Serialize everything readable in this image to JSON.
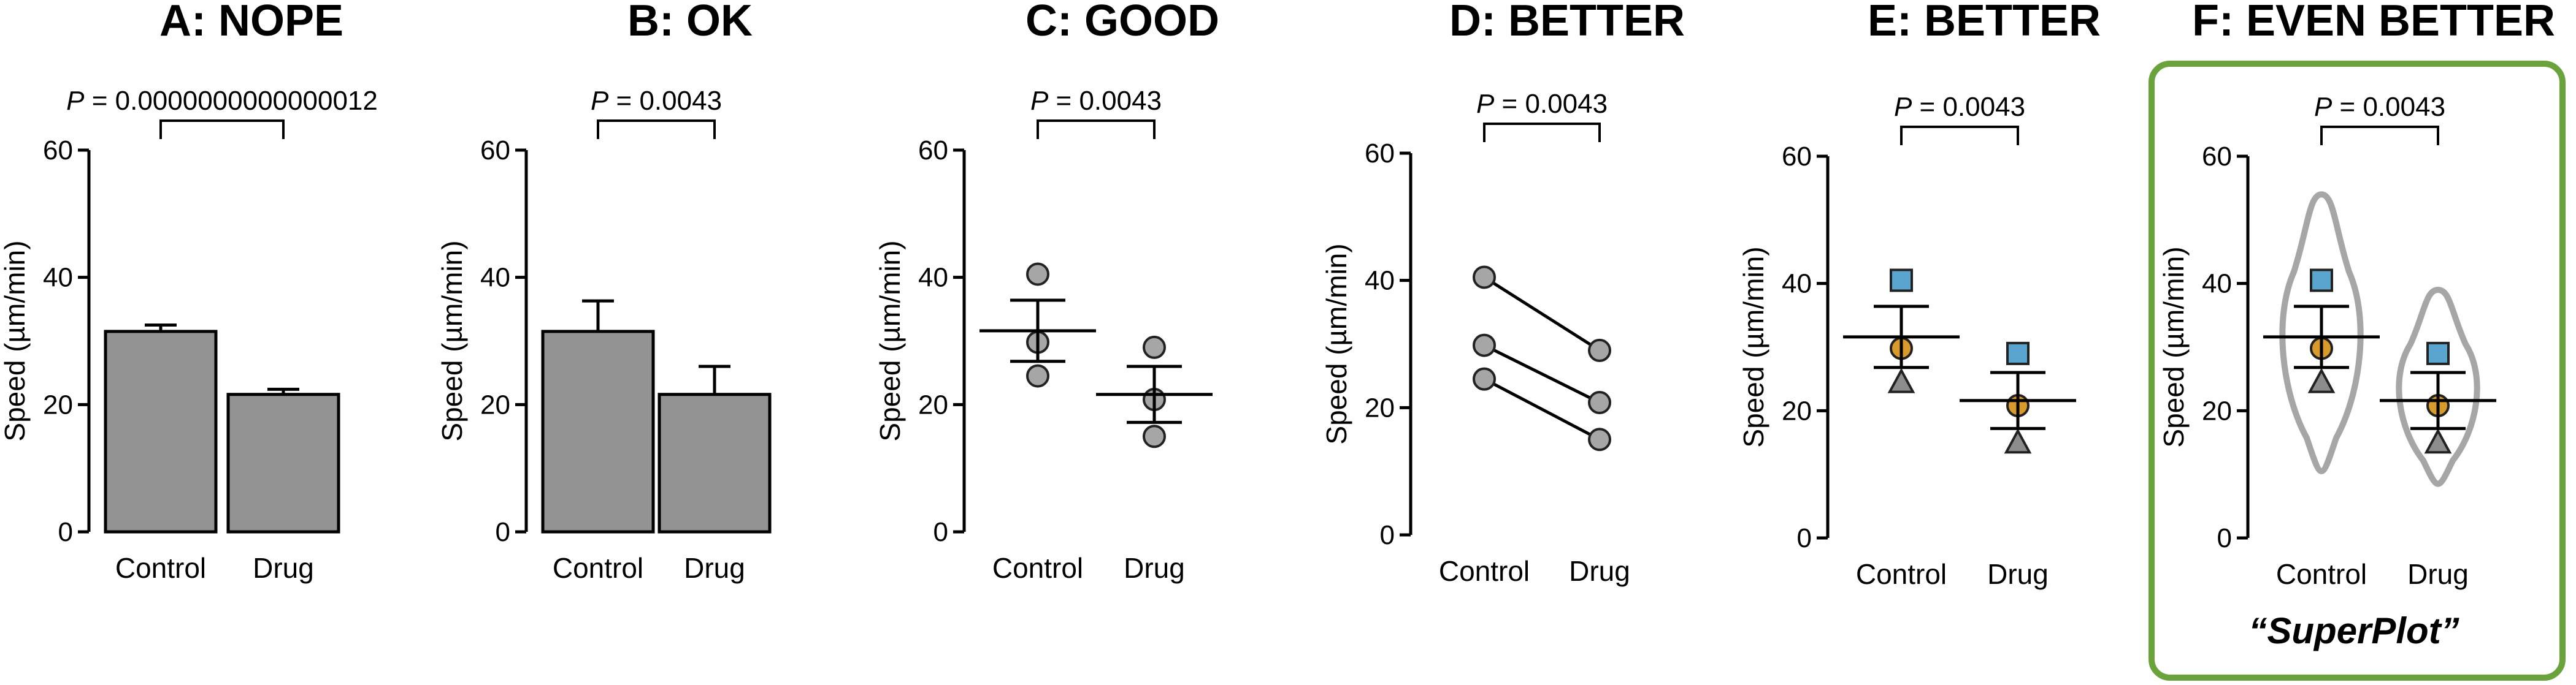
{
  "figure": {
    "superplot_label": "“SuperPlot”",
    "highlight_color": "#6aa23c"
  },
  "chart_data": [
    {
      "panel": "A",
      "type": "bar",
      "title": "A: NOPE",
      "ylabel": "Speed (µm/min)",
      "categories": [
        "Control",
        "Drug"
      ],
      "ylim": [
        0,
        60
      ],
      "yticks": [
        0,
        20,
        40,
        60
      ],
      "means": [
        31.5,
        21.6
      ],
      "errors": [
        1.0,
        0.8
      ],
      "p_label": "P",
      "p_value": "= 0.0000000000000012"
    },
    {
      "panel": "B",
      "type": "bar",
      "title": "B: OK",
      "ylabel": "Speed (µm/min)",
      "categories": [
        "Control",
        "Drug"
      ],
      "ylim": [
        0,
        60
      ],
      "yticks": [
        0,
        20,
        40,
        60
      ],
      "means": [
        31.5,
        21.6
      ],
      "errors": [
        4.8,
        4.4
      ],
      "p_label": "P",
      "p_value": "= 0.0043"
    },
    {
      "panel": "C",
      "type": "scatter",
      "title": "C: GOOD",
      "ylabel": "Speed (µm/min)",
      "categories": [
        "Control",
        "Drug"
      ],
      "ylim": [
        0,
        60
      ],
      "yticks": [
        0,
        20,
        40,
        60
      ],
      "points": [
        [
          40.5,
          29.8,
          24.5
        ],
        [
          29.0,
          20.8,
          15.0
        ]
      ],
      "means": [
        31.6,
        21.6
      ],
      "errors": [
        4.8,
        4.4
      ],
      "p_label": "P",
      "p_value": "= 0.0043"
    },
    {
      "panel": "D",
      "type": "line",
      "title": "D: BETTER",
      "ylabel": "Speed (µm/min)",
      "categories": [
        "Control",
        "Drug"
      ],
      "ylim": [
        0,
        60
      ],
      "yticks": [
        0,
        20,
        40,
        60
      ],
      "pairs": [
        [
          40.5,
          29.0
        ],
        [
          29.8,
          20.8
        ],
        [
          24.5,
          15.0
        ]
      ],
      "p_label": "P",
      "p_value": "= 0.0043"
    },
    {
      "panel": "E",
      "type": "scatter",
      "title": "E: BETTER",
      "ylabel": "Speed (µm/min)",
      "categories": [
        "Control",
        "Drug"
      ],
      "ylim": [
        0,
        60
      ],
      "yticks": [
        0,
        20,
        40,
        60
      ],
      "replicates": [
        {
          "marker": "square",
          "color": "#5aa5cf",
          "values": [
            40.5,
            29.0
          ]
        },
        {
          "marker": "circle",
          "color": "#d89a2b",
          "values": [
            29.8,
            20.8
          ]
        },
        {
          "marker": "triangle",
          "color": "#8c8c8c",
          "values": [
            24.5,
            15.0
          ]
        }
      ],
      "means": [
        31.6,
        21.6
      ],
      "errors": [
        4.8,
        4.4
      ],
      "p_label": "P",
      "p_value": "= 0.0043"
    },
    {
      "panel": "F",
      "type": "scatter",
      "title": "F: EVEN BETTER",
      "ylabel": "Speed (µm/min)",
      "categories": [
        "Control",
        "Drug"
      ],
      "ylim": [
        0,
        60
      ],
      "yticks": [
        0,
        20,
        40,
        60
      ],
      "violin_range": [
        [
          10.5,
          54.0
        ],
        [
          8.5,
          39.0
        ]
      ],
      "replicates": [
        {
          "marker": "square",
          "color": "#5aa5cf",
          "values": [
            40.5,
            29.0
          ]
        },
        {
          "marker": "circle",
          "color": "#d89a2b",
          "values": [
            29.8,
            20.8
          ]
        },
        {
          "marker": "triangle",
          "color": "#8c8c8c",
          "values": [
            24.5,
            15.0
          ]
        }
      ],
      "means": [
        31.6,
        21.6
      ],
      "errors": [
        4.8,
        4.4
      ],
      "p_label": "P",
      "p_value": "= 0.0043"
    }
  ]
}
